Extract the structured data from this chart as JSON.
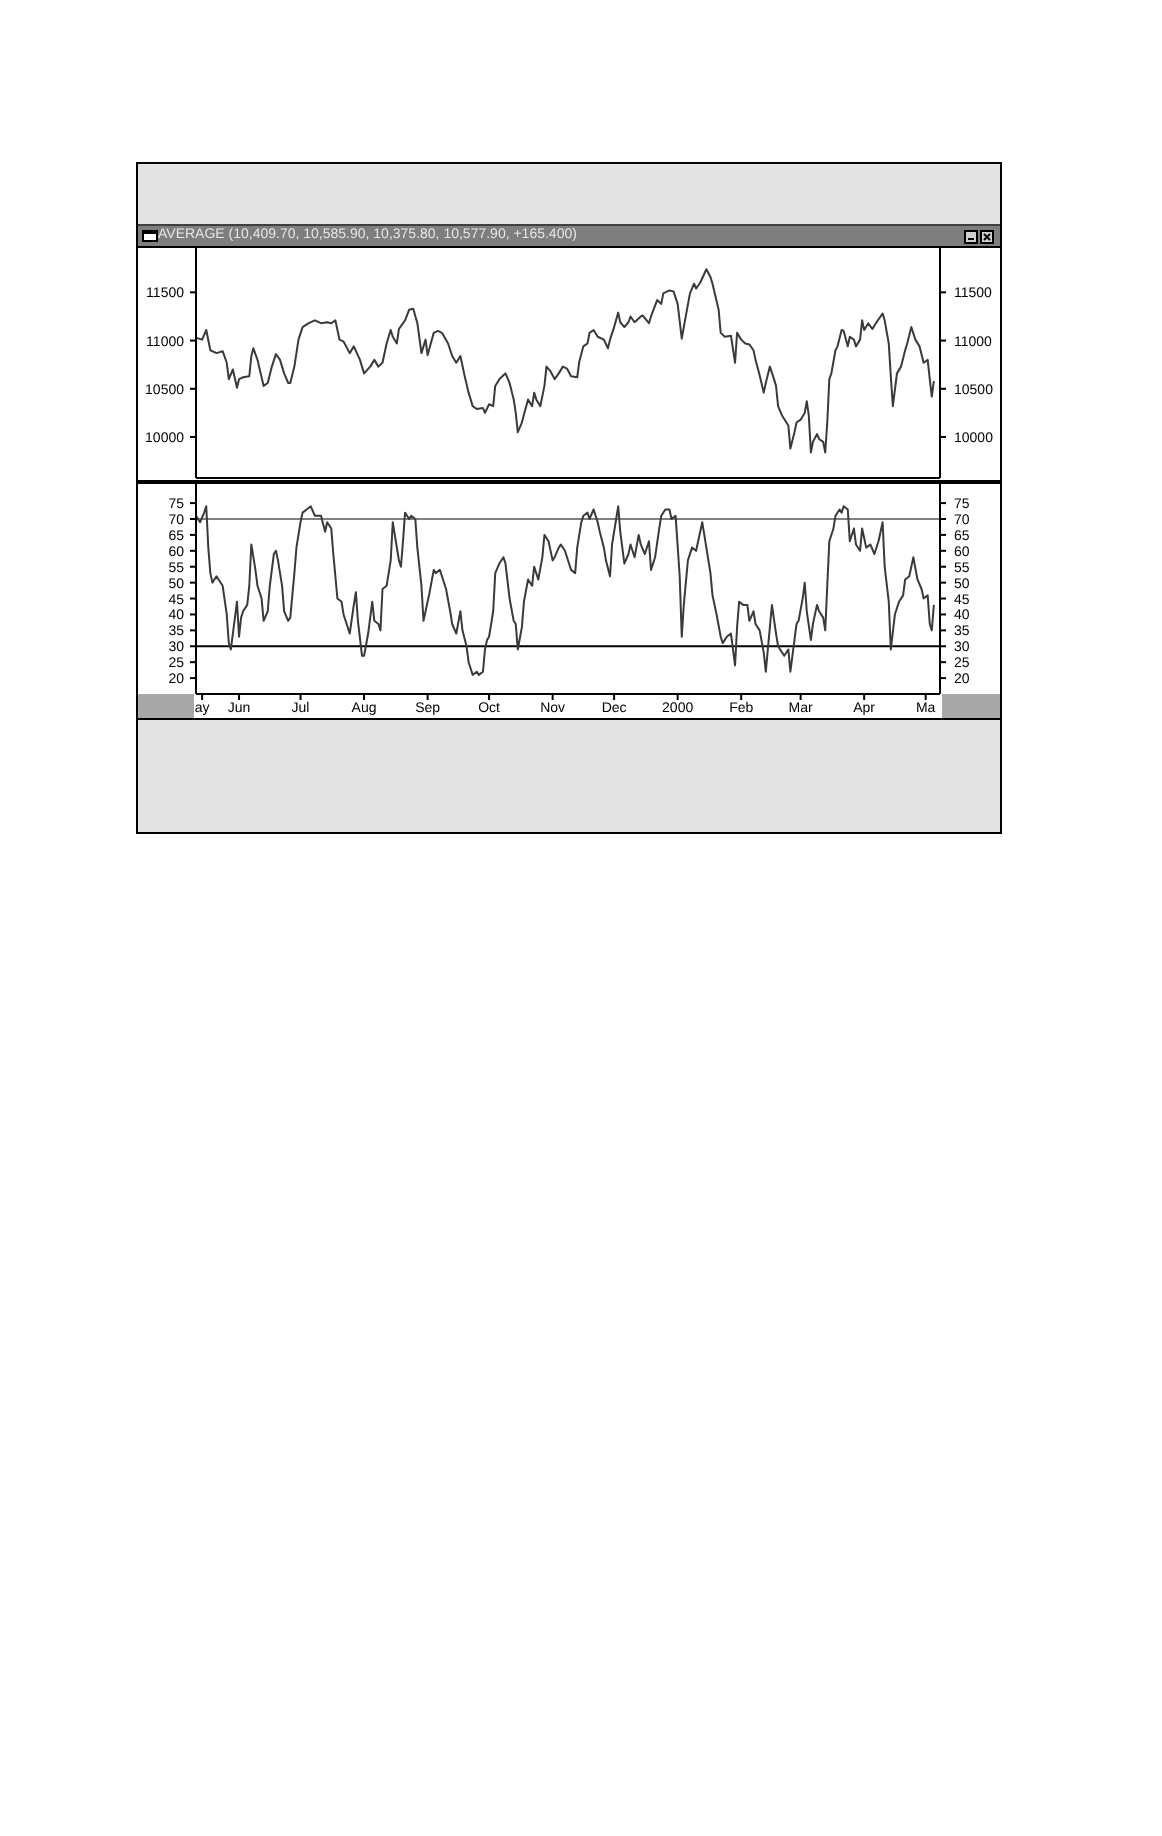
{
  "chart_data": [
    {
      "type": "line",
      "title": "AVERAGE (10,409.70, 10,585.90, 10,375.80, 10,577.90, +165.400)",
      "x": [
        "1999-05-11",
        "1999-05-14",
        "1999-05-16",
        "1999-05-18",
        "1999-05-21",
        "1999-05-24",
        "1999-05-26",
        "1999-05-27",
        "1999-05-29",
        "1999-05-31",
        "1999-06-01",
        "1999-06-03",
        "1999-06-06",
        "1999-06-07",
        "1999-06-08",
        "1999-06-10",
        "1999-06-13",
        "1999-06-15",
        "1999-06-17",
        "1999-06-19",
        "1999-06-21",
        "1999-06-23",
        "1999-06-25",
        "1999-06-26",
        "1999-06-28",
        "1999-06-30",
        "1999-07-02",
        "1999-07-05",
        "1999-07-08",
        "1999-07-11",
        "1999-07-14",
        "1999-07-16",
        "1999-07-18",
        "1999-07-20",
        "1999-07-22",
        "1999-07-25",
        "1999-07-27",
        "1999-07-30",
        "1999-08-01",
        "1999-08-04",
        "1999-08-06",
        "1999-08-08",
        "1999-08-10",
        "1999-08-12",
        "1999-08-14",
        "1999-08-15",
        "1999-08-17",
        "1999-08-18",
        "1999-08-21",
        "1999-08-23",
        "1999-08-25",
        "1999-08-27",
        "1999-08-29",
        "1999-08-31",
        "1999-09-01",
        "1999-09-04",
        "1999-09-06",
        "1999-09-08",
        "1999-09-11",
        "1999-09-13",
        "1999-09-15",
        "1999-09-17",
        "1999-09-19",
        "1999-09-21",
        "1999-09-23",
        "1999-09-25",
        "1999-09-28",
        "1999-09-29",
        "1999-10-01",
        "1999-10-03",
        "1999-10-04",
        "1999-10-06",
        "1999-10-08",
        "1999-10-09",
        "1999-10-11",
        "1999-10-13",
        "1999-10-14",
        "1999-10-15",
        "1999-10-17",
        "1999-10-18",
        "1999-10-20",
        "1999-10-22",
        "1999-10-23",
        "1999-10-24",
        "1999-10-26",
        "1999-10-28",
        "1999-10-29",
        "1999-10-31",
        "1999-11-02",
        "1999-11-04",
        "1999-11-06",
        "1999-11-08",
        "1999-11-10",
        "1999-11-13",
        "1999-11-14",
        "1999-11-16",
        "1999-11-18",
        "1999-11-19",
        "1999-11-21",
        "1999-11-23",
        "1999-11-26",
        "1999-11-28",
        "1999-11-29",
        "1999-12-01",
        "1999-12-03",
        "1999-12-04",
        "1999-12-06",
        "1999-12-08",
        "1999-12-09",
        "1999-12-11",
        "1999-12-14",
        "1999-12-15",
        "1999-12-18",
        "1999-12-19",
        "1999-12-22",
        "1999-12-24",
        "1999-12-25",
        "1999-12-28",
        "1999-12-30",
        "2000-01-01",
        "2000-01-03",
        "2000-01-04",
        "2000-01-07",
        "2000-01-09",
        "2000-01-10",
        "2000-01-12",
        "2000-01-15",
        "2000-01-17",
        "2000-01-18",
        "2000-01-21",
        "2000-01-22",
        "2000-01-24",
        "2000-01-27",
        "2000-01-29",
        "2000-01-30",
        "2000-02-01",
        "2000-02-03",
        "2000-02-05",
        "2000-02-07",
        "2000-02-08",
        "2000-02-10",
        "2000-02-12",
        "2000-02-13",
        "2000-02-15",
        "2000-02-17",
        "2000-02-18",
        "2000-02-19",
        "2000-02-21",
        "2000-02-24",
        "2000-02-25",
        "2000-02-27",
        "2000-02-28",
        "2000-03-01",
        "2000-03-03",
        "2000-03-04",
        "2000-03-05",
        "2000-03-06",
        "2000-03-07",
        "2000-03-09",
        "2000-03-10",
        "2000-03-12",
        "2000-03-13",
        "2000-03-14",
        "2000-03-15",
        "2000-03-16",
        "2000-03-18",
        "2000-03-19",
        "2000-03-21",
        "2000-03-22",
        "2000-03-24",
        "2000-03-25",
        "2000-03-27",
        "2000-03-28",
        "2000-03-30",
        "2000-03-31",
        "2000-04-01",
        "2000-04-03",
        "2000-04-05",
        "2000-04-07",
        "2000-04-10",
        "2000-04-11",
        "2000-04-13",
        "2000-04-14",
        "2000-04-15",
        "2000-04-17",
        "2000-04-19",
        "2000-04-21",
        "2000-04-22",
        "2000-04-24",
        "2000-04-26",
        "2000-04-28",
        "2000-04-30",
        "2000-05-02",
        "2000-05-03",
        "2000-05-04",
        "2000-05-05"
      ],
      "series": [
        {
          "color": "#3a3a3a",
          "values": [
            11030,
            11010,
            11110,
            10900,
            10870,
            10890,
            10770,
            10600,
            10700,
            10510,
            10600,
            10620,
            10630,
            10840,
            10920,
            10800,
            10530,
            10560,
            10730,
            10860,
            10800,
            10660,
            10560,
            10560,
            10730,
            11010,
            11140,
            11180,
            11210,
            11180,
            11190,
            11180,
            11210,
            11010,
            10990,
            10870,
            10940,
            10800,
            10660,
            10730,
            10800,
            10730,
            10770,
            10970,
            11110,
            11040,
            10970,
            11120,
            11210,
            11320,
            11330,
            11180,
            10870,
            11010,
            10850,
            11080,
            11100,
            11080,
            10970,
            10840,
            10770,
            10840,
            10640,
            10460,
            10320,
            10290,
            10300,
            10250,
            10340,
            10320,
            10530,
            10600,
            10640,
            10660,
            10560,
            10390,
            10250,
            10050,
            10150,
            10230,
            10390,
            10320,
            10460,
            10390,
            10320,
            10530,
            10730,
            10680,
            10600,
            10660,
            10730,
            10710,
            10630,
            10620,
            10780,
            10940,
            10970,
            11080,
            11110,
            11040,
            11010,
            10920,
            11010,
            11140,
            11290,
            11190,
            11140,
            11190,
            11250,
            11190,
            11250,
            11260,
            11180,
            11250,
            11420,
            11380,
            11490,
            11520,
            11510,
            11380,
            11020,
            11140,
            11490,
            11590,
            11540,
            11600,
            11740,
            11660,
            11590,
            11320,
            11080,
            11040,
            11050,
            10770,
            11080,
            11010,
            10970,
            10960,
            10900,
            10800,
            10640,
            10460,
            10560,
            10730,
            10600,
            10530,
            10320,
            10220,
            10120,
            9880,
            10050,
            10150,
            10180,
            10250,
            10370,
            10220,
            9840,
            9950,
            10030,
            9980,
            9950,
            9840,
            10150,
            10600,
            10660,
            10900,
            10940,
            11110,
            11100,
            10940,
            11040,
            11010,
            10940,
            11010,
            11210,
            11110,
            11180,
            11120,
            11190,
            11280,
            11210,
            10970,
            10630,
            10320,
            10660,
            10730,
            10900,
            10970,
            11140,
            11010,
            10940,
            10770,
            10800,
            10600,
            10420,
            10580
          ]
        }
      ],
      "xlim": [
        "1999-05-11",
        "2000-05-08"
      ],
      "ylim": [
        9575,
        11960
      ],
      "yticks": [
        10000,
        10500,
        11000,
        11500
      ],
      "y2lim": [
        9575,
        11960
      ],
      "y2ticks": [
        10000,
        10500,
        11000,
        11500
      ],
      "tick_labels": "y"
    },
    {
      "type": "line",
      "x": [
        "1999-05-11",
        "1999-05-13",
        "1999-05-15",
        "1999-05-16",
        "1999-05-17",
        "1999-05-18",
        "1999-05-19",
        "1999-05-21",
        "1999-05-22",
        "1999-05-24",
        "1999-05-26",
        "1999-05-27",
        "1999-05-28",
        "1999-05-30",
        "1999-05-31",
        "1999-06-01",
        "1999-06-02",
        "1999-06-03",
        "1999-06-05",
        "1999-06-06",
        "1999-06-07",
        "1999-06-09",
        "1999-06-10",
        "1999-06-12",
        "1999-06-13",
        "1999-06-15",
        "1999-06-16",
        "1999-06-18",
        "1999-06-19",
        "1999-06-20",
        "1999-06-22",
        "1999-06-23",
        "1999-06-25",
        "1999-06-26",
        "1999-06-28",
        "1999-06-29",
        "1999-07-01",
        "1999-07-02",
        "1999-07-04",
        "1999-07-06",
        "1999-07-08",
        "1999-07-09",
        "1999-07-11",
        "1999-07-13",
        "1999-07-14",
        "1999-07-16",
        "1999-07-17",
        "1999-07-19",
        "1999-07-21",
        "1999-07-22",
        "1999-07-25",
        "1999-07-27",
        "1999-07-28",
        "1999-07-29",
        "1999-07-31",
        "1999-08-01",
        "1999-08-03",
        "1999-08-05",
        "1999-08-06",
        "1999-08-08",
        "1999-08-09",
        "1999-08-10",
        "1999-08-12",
        "1999-08-14",
        "1999-08-15",
        "1999-08-16",
        "1999-08-18",
        "1999-08-19",
        "1999-08-20",
        "1999-08-21",
        "1999-08-23",
        "1999-08-24",
        "1999-08-26",
        "1999-08-27",
        "1999-08-29",
        "1999-08-30",
        "1999-09-01",
        "1999-09-02",
        "1999-09-04",
        "1999-09-05",
        "1999-09-07",
        "1999-09-08",
        "1999-09-10",
        "1999-09-12",
        "1999-09-13",
        "1999-09-15",
        "1999-09-17",
        "1999-09-18",
        "1999-09-20",
        "1999-09-21",
        "1999-09-23",
        "1999-09-25",
        "1999-09-26",
        "1999-09-28",
        "1999-09-29",
        "1999-09-30",
        "1999-10-01",
        "1999-10-03",
        "1999-10-04",
        "1999-10-06",
        "1999-10-08",
        "1999-10-09",
        "1999-10-11",
        "1999-10-13",
        "1999-10-14",
        "1999-10-15",
        "1999-10-17",
        "1999-10-18",
        "1999-10-20",
        "1999-10-22",
        "1999-10-23",
        "1999-10-25",
        "1999-10-27",
        "1999-10-28",
        "1999-10-30",
        "1999-11-01",
        "1999-11-02",
        "1999-11-04",
        "1999-11-05",
        "1999-11-07",
        "1999-11-09",
        "1999-11-10",
        "1999-11-12",
        "1999-11-13",
        "1999-11-15",
        "1999-11-16",
        "1999-11-18",
        "1999-11-19",
        "1999-11-21",
        "1999-11-23",
        "1999-11-24",
        "1999-11-26",
        "1999-11-27",
        "1999-11-29",
        "1999-11-30",
        "1999-12-02",
        "1999-12-03",
        "1999-12-04",
        "1999-12-06",
        "1999-12-08",
        "1999-12-09",
        "1999-12-11",
        "1999-12-13",
        "1999-12-14",
        "1999-12-16",
        "1999-12-18",
        "1999-12-19",
        "1999-12-21",
        "1999-12-23",
        "1999-12-24",
        "1999-12-26",
        "1999-12-28",
        "1999-12-29",
        "1999-12-31",
        "2000-01-02",
        "2000-01-03",
        "2000-01-04",
        "2000-01-06",
        "2000-01-08",
        "2000-01-10",
        "2000-01-11",
        "2000-01-13",
        "2000-01-15",
        "2000-01-17",
        "2000-01-18",
        "2000-01-20",
        "2000-01-22",
        "2000-01-23",
        "2000-01-25",
        "2000-01-27",
        "2000-01-29",
        "2000-01-30",
        "2000-01-31",
        "2000-02-02",
        "2000-02-04",
        "2000-02-05",
        "2000-02-07",
        "2000-02-08",
        "2000-02-10",
        "2000-02-12",
        "2000-02-13",
        "2000-02-14",
        "2000-02-16",
        "2000-02-18",
        "2000-02-19",
        "2000-02-20",
        "2000-02-22",
        "2000-02-24",
        "2000-02-25",
        "2000-02-27",
        "2000-02-28",
        "2000-02-29",
        "2000-03-02",
        "2000-03-03",
        "2000-03-04",
        "2000-03-06",
        "2000-03-07",
        "2000-03-09",
        "2000-03-10",
        "2000-03-12",
        "2000-03-13",
        "2000-03-14",
        "2000-03-15",
        "2000-03-17",
        "2000-03-18",
        "2000-03-20",
        "2000-03-21",
        "2000-03-22",
        "2000-03-24",
        "2000-03-25",
        "2000-03-27",
        "2000-03-28",
        "2000-03-30",
        "2000-03-31",
        "2000-04-02",
        "2000-04-04",
        "2000-04-06",
        "2000-04-08",
        "2000-04-10",
        "2000-04-11",
        "2000-04-13",
        "2000-04-14",
        "2000-04-16",
        "2000-04-18",
        "2000-04-20",
        "2000-04-21",
        "2000-04-23",
        "2000-04-25",
        "2000-04-27",
        "2000-04-29",
        "2000-04-30",
        "2000-05-02",
        "2000-05-03",
        "2000-05-04",
        "2000-05-05"
      ],
      "series": [
        {
          "color": "#3a3a3a",
          "values": [
            71,
            69,
            72,
            74,
            61,
            53,
            50,
            52,
            51,
            49,
            40,
            31,
            29,
            39,
            44,
            33,
            39,
            41,
            43,
            49,
            62,
            54,
            49,
            45,
            38,
            41,
            49,
            59,
            60,
            57,
            49,
            41,
            38,
            39,
            53,
            61,
            69,
            72,
            73,
            74,
            71,
            71,
            71,
            66,
            69,
            67,
            59,
            45,
            44,
            40,
            34,
            43,
            47,
            38,
            27,
            27,
            34,
            44,
            38,
            37,
            35,
            48,
            49,
            57,
            69,
            65,
            57,
            55,
            63,
            72,
            70,
            71,
            70,
            61,
            49,
            38,
            44,
            47,
            54,
            53,
            54,
            52,
            48,
            41,
            37,
            34,
            41,
            35,
            30,
            25,
            21,
            22,
            21,
            22,
            29,
            32,
            33,
            41,
            53,
            56,
            58,
            56,
            45,
            38,
            37,
            29,
            36,
            44,
            51,
            49,
            55,
            51,
            58,
            65,
            63,
            57,
            58,
            61,
            62,
            60,
            56,
            54,
            53,
            61,
            69,
            71,
            72,
            70,
            73,
            69,
            66,
            61,
            57,
            52,
            62,
            70,
            74,
            66,
            56,
            59,
            62,
            58,
            65,
            62,
            59,
            63,
            54,
            58,
            67,
            71,
            73,
            73,
            70,
            71,
            52,
            33,
            43,
            57,
            61,
            60,
            63,
            69,
            61,
            53,
            46,
            40,
            33,
            31,
            33,
            34,
            24,
            36,
            44,
            43,
            43,
            38,
            41,
            37,
            35,
            28,
            22,
            29,
            43,
            34,
            30,
            29,
            27,
            29,
            22,
            32,
            37,
            38,
            45,
            50,
            41,
            32,
            37,
            43,
            41,
            39,
            35,
            49,
            63,
            67,
            71,
            73,
            72,
            74,
            73,
            63,
            67,
            62,
            60,
            67,
            61,
            62,
            59,
            63,
            69,
            55,
            44,
            29,
            40,
            44,
            46,
            51,
            52,
            58,
            51,
            48,
            45,
            46,
            37,
            35,
            43
          ]
        }
      ],
      "xlim": [
        "1999-05-11",
        "2000-05-08"
      ],
      "xticks": [
        {
          "value": "1999-05-14",
          "label": "ay"
        },
        {
          "value": "1999-06-01",
          "label": "Jun"
        },
        {
          "value": "1999-07-01",
          "label": "Jul"
        },
        {
          "value": "1999-08-01",
          "label": "Aug"
        },
        {
          "value": "1999-09-01",
          "label": "Sep"
        },
        {
          "value": "1999-10-01",
          "label": "Oct"
        },
        {
          "value": "1999-11-01",
          "label": "Nov"
        },
        {
          "value": "1999-12-01",
          "label": "Dec"
        },
        {
          "value": "2000-01-01",
          "label": "2000"
        },
        {
          "value": "2000-02-01",
          "label": "Feb"
        },
        {
          "value": "2000-03-01",
          "label": "Mar"
        },
        {
          "value": "2000-04-01",
          "label": "Apr"
        },
        {
          "value": "2000-05-01",
          "label": "Ma"
        }
      ],
      "ylim": [
        15,
        81
      ],
      "yticks": [
        20,
        25,
        30,
        35,
        40,
        45,
        50,
        55,
        60,
        65,
        70,
        75
      ],
      "y2lim": [
        15,
        81
      ],
      "y2ticks": [
        20,
        25,
        30,
        35,
        40,
        45,
        50,
        55,
        60,
        65,
        70,
        75
      ],
      "ref_lines": [
        {
          "axis": "y",
          "value": 70,
          "color": "#808080"
        },
        {
          "axis": "y",
          "value": 30,
          "color": "#000000"
        }
      ]
    }
  ]
}
